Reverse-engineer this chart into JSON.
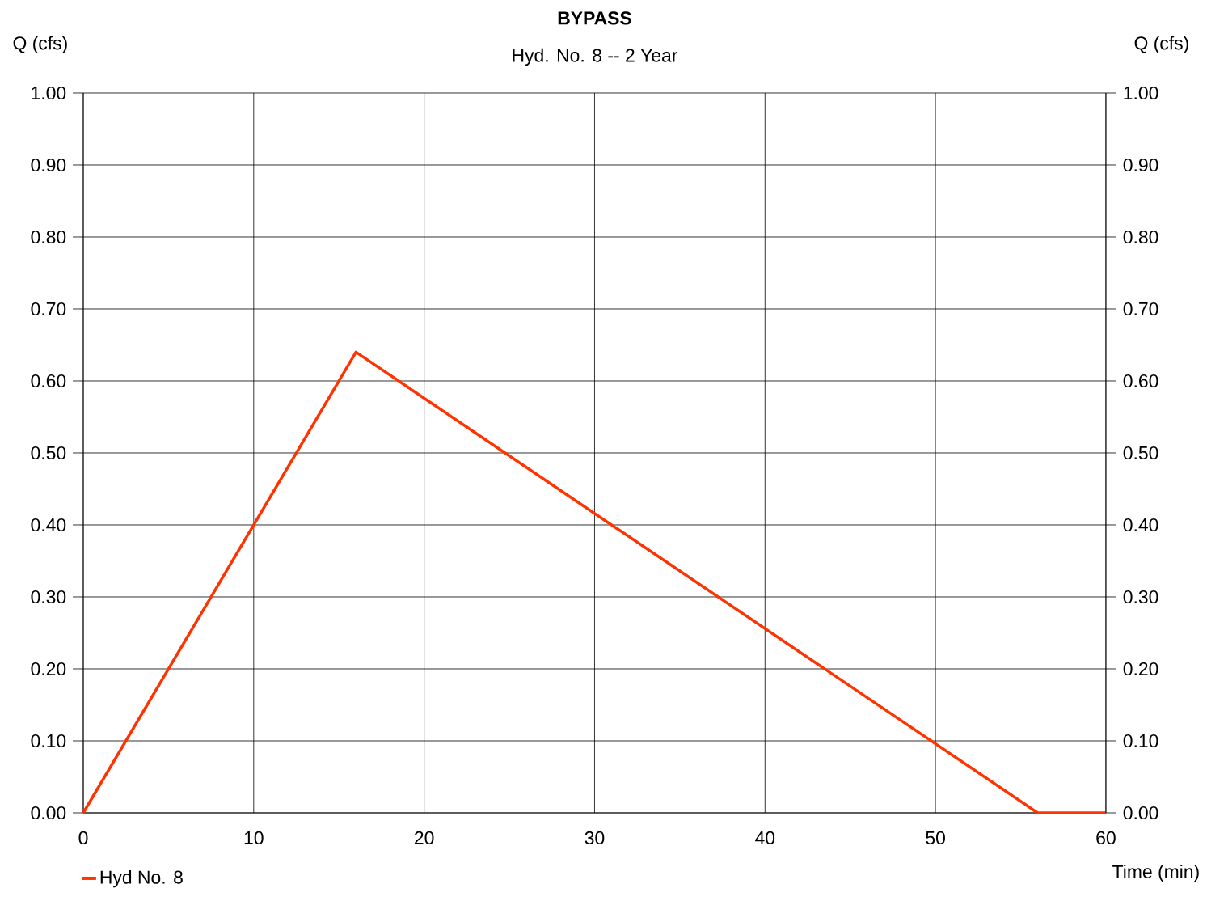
{
  "chart_data": {
    "type": "line",
    "title": "BYPASS",
    "subtitle": "Hyd. No. 8 -- 2 Year",
    "xlabel": "Time (min)",
    "ylabel": "Q (cfs)",
    "y2label": "Q (cfs)",
    "x": [
      0,
      16,
      56,
      60
    ],
    "series": [
      {
        "name": "Hyd No. 8",
        "color": "#ff3300",
        "values": [
          0,
          0.64,
          0,
          0
        ]
      }
    ],
    "xlim": [
      0,
      60
    ],
    "xticks": [
      0,
      10,
      20,
      30,
      40,
      50,
      60
    ],
    "ylim": [
      0,
      1
    ],
    "yticks": [
      {
        "value": 0,
        "label": "0.00"
      },
      {
        "value": 0.1,
        "label": "0.10"
      },
      {
        "value": 0.2,
        "label": "0.20"
      },
      {
        "value": 0.3,
        "label": "0.30"
      },
      {
        "value": 0.4,
        "label": "0.40"
      },
      {
        "value": 0.5,
        "label": "0.50"
      },
      {
        "value": 0.6,
        "label": "0.60"
      },
      {
        "value": 0.7,
        "label": "0.70"
      },
      {
        "value": 0.8,
        "label": "0.80"
      },
      {
        "value": 0.9,
        "label": "0.90"
      },
      {
        "value": 1,
        "label": "1.00"
      }
    ],
    "y2lim": [
      0,
      1
    ],
    "y2ticks": [
      {
        "value": 0,
        "label": "0.00"
      },
      {
        "value": 0.1,
        "label": "0.10"
      },
      {
        "value": 0.2,
        "label": "0.20"
      },
      {
        "value": 0.3,
        "label": "0.30"
      },
      {
        "value": 0.4,
        "label": "0.40"
      },
      {
        "value": 0.5,
        "label": "0.50"
      },
      {
        "value": 0.6,
        "label": "0.60"
      },
      {
        "value": 0.7,
        "label": "0.70"
      },
      {
        "value": 0.8,
        "label": "0.80"
      },
      {
        "value": 0.9,
        "label": "0.90"
      },
      {
        "value": 1,
        "label": "1.00"
      }
    ],
    "grid": true,
    "legend": "bottom left",
    "marker": "none",
    "line_style": "solid"
  }
}
